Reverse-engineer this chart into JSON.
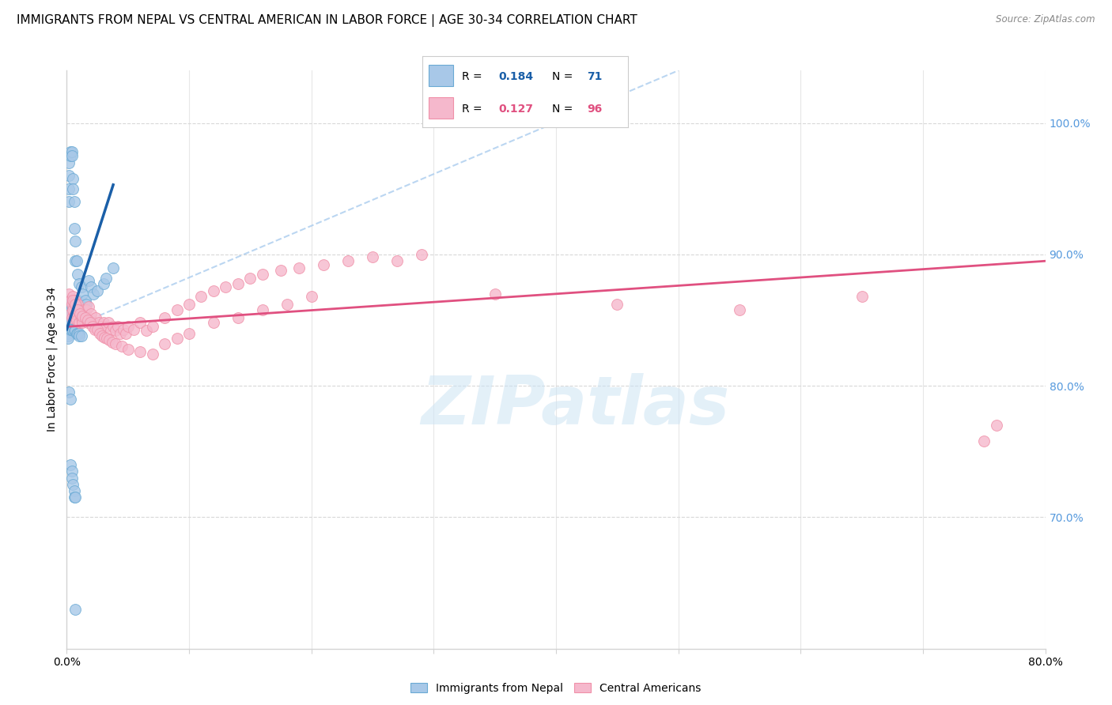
{
  "title": "IMMIGRANTS FROM NEPAL VS CENTRAL AMERICAN IN LABOR FORCE | AGE 30-34 CORRELATION CHART",
  "source": "Source: ZipAtlas.com",
  "ylabel": "In Labor Force | Age 30-34",
  "xlim": [
    0.0,
    0.8
  ],
  "ylim": [
    0.6,
    1.04
  ],
  "xticks": [
    0.0,
    0.1,
    0.2,
    0.3,
    0.4,
    0.5,
    0.6,
    0.7,
    0.8
  ],
  "yticks_right": [
    0.7,
    0.8,
    0.9,
    1.0
  ],
  "ytick_labels_right": [
    "70.0%",
    "80.0%",
    "90.0%",
    "100.0%"
  ],
  "nepal_color": "#a8c8e8",
  "nepal_edge": "#6aaad4",
  "nepal_line_color": "#1a5fa8",
  "ca_color": "#f5b8cc",
  "ca_edge": "#f090a8",
  "ca_line_color": "#e05080",
  "watermark": "ZIPatlas",
  "nepal_x": [
    0.001,
    0.001,
    0.001,
    0.001,
    0.001,
    0.001,
    0.001,
    0.001,
    0.001,
    0.002,
    0.002,
    0.002,
    0.002,
    0.002,
    0.002,
    0.003,
    0.003,
    0.003,
    0.003,
    0.003,
    0.004,
    0.004,
    0.004,
    0.004,
    0.005,
    0.005,
    0.005,
    0.005,
    0.006,
    0.006,
    0.006,
    0.007,
    0.007,
    0.007,
    0.008,
    0.008,
    0.009,
    0.009,
    0.01,
    0.01,
    0.012,
    0.013,
    0.015,
    0.016,
    0.018,
    0.02,
    0.022,
    0.025,
    0.03,
    0.032,
    0.038,
    0.003,
    0.004,
    0.005,
    0.006,
    0.007,
    0.008,
    0.009,
    0.01,
    0.01,
    0.012,
    0.002,
    0.003,
    0.003,
    0.004,
    0.004,
    0.005,
    0.006,
    0.006,
    0.007,
    0.007
  ],
  "nepal_y": [
    0.86,
    0.855,
    0.85,
    0.848,
    0.845,
    0.843,
    0.84,
    0.838,
    0.836,
    0.97,
    0.96,
    0.95,
    0.94,
    0.855,
    0.848,
    0.978,
    0.975,
    0.865,
    0.86,
    0.855,
    0.978,
    0.975,
    0.86,
    0.856,
    0.958,
    0.95,
    0.86,
    0.856,
    0.94,
    0.92,
    0.855,
    0.91,
    0.895,
    0.858,
    0.895,
    0.86,
    0.885,
    0.865,
    0.878,
    0.862,
    0.875,
    0.87,
    0.865,
    0.862,
    0.88,
    0.875,
    0.87,
    0.872,
    0.878,
    0.882,
    0.89,
    0.843,
    0.843,
    0.842,
    0.842,
    0.842,
    0.84,
    0.84,
    0.84,
    0.838,
    0.838,
    0.795,
    0.79,
    0.74,
    0.735,
    0.73,
    0.725,
    0.72,
    0.715,
    0.715,
    0.63
  ],
  "ca_x": [
    0.002,
    0.003,
    0.003,
    0.004,
    0.004,
    0.005,
    0.005,
    0.006,
    0.006,
    0.007,
    0.007,
    0.008,
    0.008,
    0.009,
    0.01,
    0.01,
    0.011,
    0.012,
    0.013,
    0.014,
    0.015,
    0.016,
    0.017,
    0.018,
    0.02,
    0.022,
    0.024,
    0.026,
    0.028,
    0.03,
    0.032,
    0.034,
    0.036,
    0.038,
    0.04,
    0.042,
    0.044,
    0.046,
    0.048,
    0.05,
    0.055,
    0.06,
    0.065,
    0.07,
    0.08,
    0.09,
    0.1,
    0.11,
    0.12,
    0.13,
    0.14,
    0.15,
    0.16,
    0.175,
    0.19,
    0.21,
    0.23,
    0.25,
    0.27,
    0.29,
    0.005,
    0.007,
    0.009,
    0.011,
    0.013,
    0.015,
    0.017,
    0.019,
    0.021,
    0.023,
    0.025,
    0.027,
    0.029,
    0.031,
    0.033,
    0.035,
    0.037,
    0.04,
    0.045,
    0.05,
    0.06,
    0.07,
    0.08,
    0.09,
    0.1,
    0.12,
    0.14,
    0.16,
    0.18,
    0.2,
    0.35,
    0.45,
    0.55,
    0.65,
    0.75,
    0.76
  ],
  "ca_y": [
    0.87,
    0.865,
    0.855,
    0.862,
    0.852,
    0.868,
    0.858,
    0.863,
    0.853,
    0.865,
    0.855,
    0.86,
    0.85,
    0.862,
    0.858,
    0.848,
    0.855,
    0.852,
    0.848,
    0.858,
    0.852,
    0.858,
    0.848,
    0.86,
    0.855,
    0.848,
    0.852,
    0.848,
    0.845,
    0.848,
    0.845,
    0.848,
    0.842,
    0.845,
    0.842,
    0.845,
    0.84,
    0.843,
    0.84,
    0.845,
    0.843,
    0.848,
    0.842,
    0.845,
    0.852,
    0.858,
    0.862,
    0.868,
    0.872,
    0.875,
    0.878,
    0.882,
    0.885,
    0.888,
    0.89,
    0.892,
    0.895,
    0.898,
    0.895,
    0.9,
    0.865,
    0.862,
    0.858,
    0.855,
    0.853,
    0.852,
    0.85,
    0.848,
    0.845,
    0.843,
    0.843,
    0.84,
    0.838,
    0.837,
    0.836,
    0.835,
    0.833,
    0.832,
    0.83,
    0.828,
    0.826,
    0.824,
    0.832,
    0.836,
    0.84,
    0.848,
    0.852,
    0.858,
    0.862,
    0.868,
    0.87,
    0.862,
    0.858,
    0.868,
    0.758,
    0.77
  ],
  "background_color": "#ffffff",
  "grid_color": "#d8d8d8",
  "title_fontsize": 11,
  "axis_label_fontsize": 10
}
